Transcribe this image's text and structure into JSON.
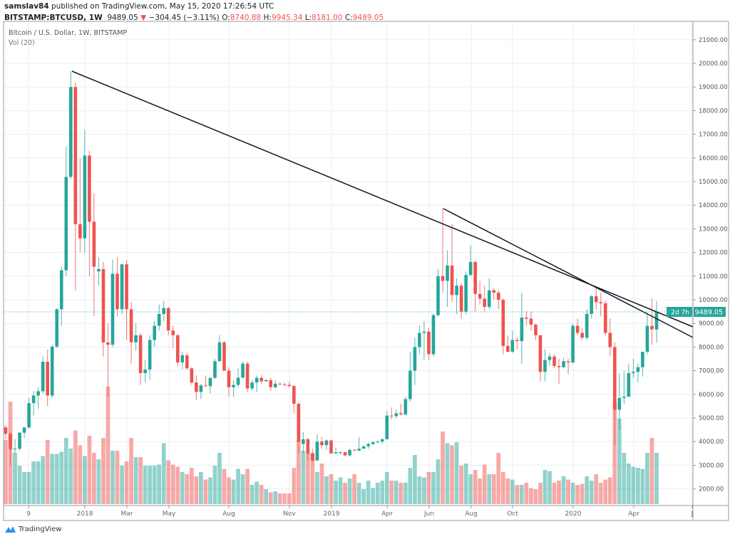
{
  "header": {
    "publisher": "samslav84",
    "published_text": "published on TradingView.com, May 15, 2020 17:26:54 UTC",
    "symbol": "BITSTAMP:BTCUSD, 1W",
    "last": "9489.05",
    "change": "−304.45 (−3.11%)",
    "o_label": "O:",
    "o": "8740.88",
    "h_label": "H:",
    "h": "9945.34",
    "l_label": "L:",
    "l": "8181.00",
    "c_label": "C:",
    "c": "9489.05",
    "direction_icon": "triangle-down-icon"
  },
  "legend": {
    "title": "Bitcoin / U.S. Dollar, 1W, BITSTAMP",
    "volume": "Vol (20)"
  },
  "price_badge": {
    "value": "9489.05",
    "countdown": "2d 7h"
  },
  "footer": {
    "brand": "TradingView"
  },
  "colors": {
    "up": "#26a69a",
    "down": "#ef5350",
    "trendline": "#131722",
    "grid": "#e9eef3"
  },
  "chart_data": {
    "type": "candlestick",
    "interval": "1W",
    "ylim": [
      1300,
      21900
    ],
    "grid": true,
    "legend": "top-left",
    "y_ticks": [
      "21000.00",
      "20000.00",
      "19000.00",
      "18000.00",
      "17000.00",
      "16000.00",
      "15000.00",
      "14000.00",
      "13000.00",
      "12000.00",
      "11000.00",
      "10000.00",
      "9000.00",
      "8000.00",
      "7000.00",
      "6000.00",
      "5000.00",
      "4000.00",
      "3000.00",
      "2000.00"
    ],
    "x_ticks": [
      "9",
      "2018",
      "Mar",
      "May",
      "Aug",
      "Nov",
      "2019",
      "Apr",
      "Jun",
      "Aug",
      "Oct",
      "2020",
      "Apr",
      "J"
    ],
    "ohlc": [
      [
        4600,
        4700,
        4100,
        4330
      ],
      [
        4330,
        4400,
        2980,
        3680
      ],
      [
        3680,
        4100,
        3480,
        3700
      ],
      [
        3700,
        4400,
        3600,
        4380
      ],
      [
        4380,
        4600,
        4150,
        4600
      ],
      [
        4600,
        5850,
        4560,
        5630
      ],
      [
        5630,
        6150,
        5100,
        5950
      ],
      [
        5950,
        6300,
        5380,
        6130
      ],
      [
        6130,
        7600,
        6030,
        7380
      ],
      [
        7380,
        7900,
        5500,
        5950
      ],
      [
        5950,
        8100,
        5850,
        8020
      ],
      [
        8020,
        9650,
        7950,
        9600
      ],
      [
        9600,
        11400,
        8900,
        11250
      ],
      [
        11250,
        16500,
        11000,
        15200
      ],
      [
        15200,
        19666,
        15100,
        19000
      ],
      [
        19000,
        19200,
        10400,
        13200
      ],
      [
        13200,
        16000,
        12000,
        12600
      ],
      [
        12600,
        17200,
        12000,
        16100
      ],
      [
        16100,
        16300,
        11000,
        13300
      ],
      [
        13300,
        14500,
        9300,
        11400
      ],
      [
        11200,
        11800,
        10600,
        11300
      ],
      [
        11300,
        11600,
        7600,
        8200
      ],
      [
        8200,
        9000,
        5900,
        8100
      ],
      [
        8100,
        11700,
        8000,
        11100
      ],
      [
        11100,
        11800,
        9300,
        9600
      ],
      [
        9600,
        11500,
        9400,
        11500
      ],
      [
        11500,
        11700,
        8300,
        9600
      ],
      [
        9600,
        9900,
        7300,
        8200
      ],
      [
        8200,
        9000,
        7850,
        8500
      ],
      [
        8500,
        8600,
        6400,
        6900
      ],
      [
        6900,
        7450,
        6500,
        7050
      ],
      [
        7050,
        8500,
        6600,
        8300
      ],
      [
        8300,
        9100,
        8000,
        8900
      ],
      [
        8900,
        9800,
        8700,
        9400
      ],
      [
        9400,
        9950,
        9100,
        9650
      ],
      [
        9650,
        9700,
        8500,
        8700
      ],
      [
        8700,
        8900,
        7950,
        8500
      ],
      [
        8500,
        8550,
        7200,
        7350
      ],
      [
        7350,
        7800,
        7050,
        7650
      ],
      [
        7650,
        7760,
        7050,
        7100
      ],
      [
        7100,
        7150,
        6400,
        6500
      ],
      [
        6500,
        6800,
        5750,
        6100
      ],
      [
        6100,
        6450,
        5800,
        6380
      ],
      [
        6380,
        6800,
        6300,
        6350
      ],
      [
        6350,
        6700,
        6050,
        6700
      ],
      [
        6700,
        7500,
        6650,
        7400
      ],
      [
        7400,
        8500,
        7400,
        8200
      ],
      [
        8200,
        8250,
        7000,
        7000
      ],
      [
        7000,
        7150,
        5900,
        6300
      ],
      [
        6300,
        6600,
        5900,
        6400
      ],
      [
        6400,
        7100,
        6300,
        6700
      ],
      [
        6700,
        7400,
        6700,
        7300
      ],
      [
        7300,
        7400,
        6100,
        6250
      ],
      [
        6250,
        6600,
        6150,
        6500
      ],
      [
        6500,
        6800,
        6100,
        6700
      ],
      [
        6700,
        6800,
        6450,
        6550
      ],
      [
        6550,
        6650,
        6550,
        6600
      ],
      [
        6600,
        6700,
        6150,
        6300
      ],
      [
        6300,
        6600,
        6250,
        6450
      ],
      [
        6450,
        6500,
        6400,
        6420
      ],
      [
        6420,
        6500,
        6350,
        6400
      ],
      [
        6400,
        6550,
        6300,
        6350
      ],
      [
        6350,
        6400,
        5200,
        5600
      ],
      [
        5600,
        5650,
        3500,
        4000
      ],
      [
        3900,
        4400,
        3500,
        4100
      ],
      [
        4100,
        4150,
        3200,
        3500
      ],
      [
        3500,
        3700,
        3150,
        3200
      ],
      [
        3200,
        4300,
        3200,
        4000
      ],
      [
        4000,
        4200,
        3700,
        3850
      ],
      [
        3850,
        4100,
        3650,
        4050
      ],
      [
        4050,
        4050,
        3500,
        3500
      ],
      [
        3500,
        3750,
        3500,
        3550
      ],
      [
        3550,
        3600,
        3450,
        3550
      ],
      [
        3550,
        3580,
        3370,
        3420
      ],
      [
        3420,
        3700,
        3370,
        3650
      ],
      [
        3650,
        3680,
        3600,
        3620
      ],
      [
        3620,
        4200,
        3600,
        3700
      ],
      [
        3700,
        3850,
        3700,
        3800
      ],
      [
        3800,
        3950,
        3700,
        3900
      ],
      [
        3900,
        4000,
        3850,
        3980
      ],
      [
        3980,
        4050,
        3950,
        4000
      ],
      [
        4000,
        4150,
        3900,
        4100
      ],
      [
        4100,
        5300,
        4100,
        5100
      ],
      [
        5100,
        5450,
        4950,
        5080
      ],
      [
        5080,
        5350,
        5000,
        5200
      ],
      [
        5200,
        5600,
        5100,
        5150
      ],
      [
        5150,
        5900,
        5100,
        5800
      ],
      [
        5800,
        7800,
        5700,
        7000
      ],
      [
        7000,
        8400,
        6400,
        8000
      ],
      [
        8000,
        8900,
        7700,
        8600
      ],
      [
        8600,
        9100,
        7450,
        8650
      ],
      [
        8650,
        8800,
        7450,
        7700
      ],
      [
        7700,
        9400,
        7600,
        9350
      ],
      [
        9350,
        11300,
        9300,
        11000
      ],
      [
        11000,
        13880,
        10300,
        10800
      ],
      [
        10800,
        12100,
        9700,
        11450
      ],
      [
        11450,
        13200,
        9900,
        10200
      ],
      [
        10200,
        10900,
        9400,
        10600
      ],
      [
        10600,
        10700,
        9200,
        9500
      ],
      [
        9500,
        11200,
        9400,
        11050
      ],
      [
        11050,
        12300,
        11000,
        11600
      ],
      [
        11600,
        11650,
        9500,
        10250
      ],
      [
        10250,
        10800,
        9800,
        10050
      ],
      [
        10050,
        10600,
        9500,
        9700
      ],
      [
        9700,
        10900,
        9600,
        10400
      ],
      [
        10400,
        10500,
        10000,
        10300
      ],
      [
        10300,
        10400,
        9600,
        10000
      ],
      [
        10000,
        10050,
        7700,
        8050
      ],
      [
        8050,
        8500,
        7800,
        7800
      ],
      [
        7800,
        8700,
        7750,
        8300
      ],
      [
        8300,
        8400,
        7900,
        8250
      ],
      [
        8250,
        10300,
        7300,
        9250
      ],
      [
        9250,
        9500,
        8900,
        9200
      ],
      [
        9200,
        9500,
        8700,
        8950
      ],
      [
        8950,
        9000,
        8300,
        8500
      ],
      [
        8500,
        8500,
        6550,
        6950
      ],
      [
        6950,
        7900,
        6550,
        7450
      ],
      [
        7450,
        7750,
        7200,
        7600
      ],
      [
        7600,
        7700,
        7100,
        7200
      ],
      [
        7200,
        7500,
        6450,
        7150
      ],
      [
        7150,
        7550,
        7100,
        7400
      ],
      [
        7400,
        7500,
        6850,
        7350
      ],
      [
        7350,
        9000,
        7300,
        8900
      ],
      [
        8900,
        9200,
        8500,
        8600
      ],
      [
        8600,
        8800,
        8300,
        8400
      ],
      [
        8400,
        9600,
        8300,
        9400
      ],
      [
        9400,
        10200,
        9200,
        10150
      ],
      [
        10150,
        10500,
        9600,
        9900
      ],
      [
        9900,
        10300,
        9300,
        9850
      ],
      [
        9850,
        9950,
        8500,
        8600
      ],
      [
        8600,
        9200,
        7600,
        8000
      ],
      [
        8000,
        8200,
        3850,
        5350
      ],
      [
        5350,
        6900,
        4500,
        5850
      ],
      [
        5850,
        7000,
        5600,
        5900
      ],
      [
        5900,
        7300,
        5900,
        6900
      ],
      [
        6900,
        7500,
        6700,
        6950
      ],
      [
        6950,
        7300,
        6500,
        7150
      ],
      [
        7150,
        7800,
        6750,
        7800
      ],
      [
        7800,
        9450,
        7700,
        8900
      ],
      [
        8900,
        10050,
        8100,
        8750
      ],
      [
        8740.88,
        9945.34,
        8181.0,
        9489.05
      ]
    ],
    "volume_relative": [
      60,
      96,
      48,
      36,
      30,
      30,
      40,
      40,
      45,
      60,
      47,
      47,
      49,
      62,
      52,
      69,
      55,
      45,
      64,
      48,
      42,
      62,
      110,
      50,
      50,
      36,
      40,
      62,
      44,
      44,
      36,
      36,
      36,
      37,
      57,
      41,
      37,
      35,
      30,
      28,
      34,
      26,
      30,
      23,
      25,
      36,
      48,
      33,
      25,
      23,
      33,
      28,
      33,
      18,
      21,
      18,
      14,
      11,
      12,
      10,
      10,
      10,
      34,
      60,
      50,
      48,
      48,
      30,
      38,
      26,
      28,
      22,
      25,
      20,
      24,
      28,
      20,
      14,
      22,
      15,
      20,
      22,
      30,
      22,
      22,
      20,
      20,
      34,
      46,
      26,
      25,
      30,
      30,
      42,
      68,
      57,
      55,
      58,
      36,
      38,
      28,
      32,
      24,
      37,
      28,
      28,
      48,
      30,
      24,
      23,
      18,
      18,
      20,
      15,
      14,
      20,
      32,
      31,
      20,
      22,
      26,
      23,
      20,
      18,
      19,
      26,
      22,
      28,
      20,
      23,
      25,
      95,
      80,
      48,
      38,
      35,
      34,
      33,
      48,
      62,
      48
    ],
    "last_price": 9489.05
  }
}
